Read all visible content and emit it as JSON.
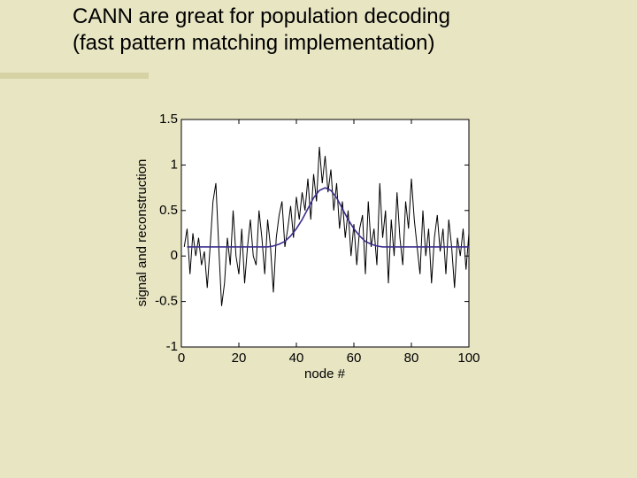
{
  "chart_data": {
    "type": "line",
    "title": [
      "CANN are great for population decoding",
      "(fast pattern matching implementation)"
    ],
    "xlabel": "node #",
    "ylabel": "signal and reconstruction",
    "xlim": [
      0,
      100
    ],
    "xticks": [
      0,
      20,
      40,
      60,
      80,
      100
    ],
    "ylim": [
      -1,
      1.5
    ],
    "yticks": [
      -1,
      -0.5,
      0,
      0.5,
      1,
      1.5
    ],
    "series": [
      {
        "color": "#000000",
        "x": [
          1,
          2,
          3,
          4,
          5,
          6,
          7,
          8,
          9,
          10,
          11,
          12,
          13,
          14,
          15,
          16,
          17,
          18,
          19,
          20,
          21,
          22,
          23,
          24,
          25,
          26,
          27,
          28,
          29,
          30,
          31,
          32,
          33,
          34,
          35,
          36,
          37,
          38,
          39,
          40,
          41,
          42,
          43,
          44,
          45,
          46,
          47,
          48,
          49,
          50,
          51,
          52,
          53,
          54,
          55,
          56,
          57,
          58,
          59,
          60,
          61,
          62,
          63,
          64,
          65,
          66,
          67,
          68,
          69,
          70,
          71,
          72,
          73,
          74,
          75,
          76,
          77,
          78,
          79,
          80,
          81,
          82,
          83,
          84,
          85,
          86,
          87,
          88,
          89,
          90,
          91,
          92,
          93,
          94,
          95,
          96,
          97,
          98,
          99,
          100
        ],
        "values": [
          0.1,
          0.3,
          -0.2,
          0.25,
          0.0,
          0.2,
          -0.1,
          0.05,
          -0.35,
          0.1,
          0.6,
          0.8,
          0.1,
          -0.55,
          -0.3,
          0.2,
          -0.1,
          0.5,
          0.0,
          -0.2,
          0.3,
          -0.3,
          0.1,
          0.4,
          0.0,
          -0.1,
          0.5,
          0.2,
          -0.2,
          0.4,
          0.1,
          -0.4,
          0.2,
          0.45,
          0.6,
          0.1,
          0.3,
          0.55,
          0.2,
          0.65,
          0.4,
          0.7,
          0.5,
          0.85,
          0.4,
          0.9,
          0.6,
          1.2,
          0.8,
          1.1,
          0.7,
          0.95,
          0.5,
          0.8,
          0.3,
          0.6,
          0.2,
          0.5,
          0.0,
          0.35,
          -0.1,
          0.3,
          0.45,
          -0.2,
          0.6,
          0.1,
          0.3,
          -0.1,
          0.8,
          0.2,
          0.5,
          -0.3,
          0.4,
          0.0,
          0.7,
          0.2,
          -0.1,
          0.6,
          0.3,
          0.85,
          0.4,
          0.1,
          -0.2,
          0.5,
          0.0,
          0.3,
          -0.3,
          0.2,
          0.45,
          0.05,
          0.3,
          -0.2,
          0.4,
          0.1,
          -0.35,
          0.2,
          0.0,
          0.3,
          -0.15,
          0.25
        ]
      },
      {
        "color": "#3b2f8e",
        "x": [
          2,
          4,
          6,
          8,
          10,
          12,
          14,
          16,
          18,
          20,
          22,
          24,
          26,
          28,
          30,
          32,
          34,
          36,
          38,
          40,
          42,
          44,
          46,
          48,
          50,
          52,
          54,
          56,
          58,
          60,
          62,
          64,
          66,
          68,
          70,
          72,
          74,
          76,
          78,
          80,
          82,
          84,
          86,
          88,
          90,
          92,
          94,
          96,
          98,
          100
        ],
        "values": [
          0.1,
          0.1,
          0.1,
          0.1,
          0.1,
          0.1,
          0.1,
          0.1,
          0.1,
          0.1,
          0.1,
          0.1,
          0.1,
          0.1,
          0.1,
          0.11,
          0.13,
          0.16,
          0.22,
          0.3,
          0.4,
          0.52,
          0.64,
          0.72,
          0.75,
          0.72,
          0.64,
          0.52,
          0.4,
          0.3,
          0.22,
          0.16,
          0.13,
          0.11,
          0.1,
          0.1,
          0.1,
          0.1,
          0.1,
          0.1,
          0.1,
          0.1,
          0.1,
          0.1,
          0.1,
          0.1,
          0.1,
          0.1,
          0.1,
          0.1
        ]
      }
    ]
  }
}
